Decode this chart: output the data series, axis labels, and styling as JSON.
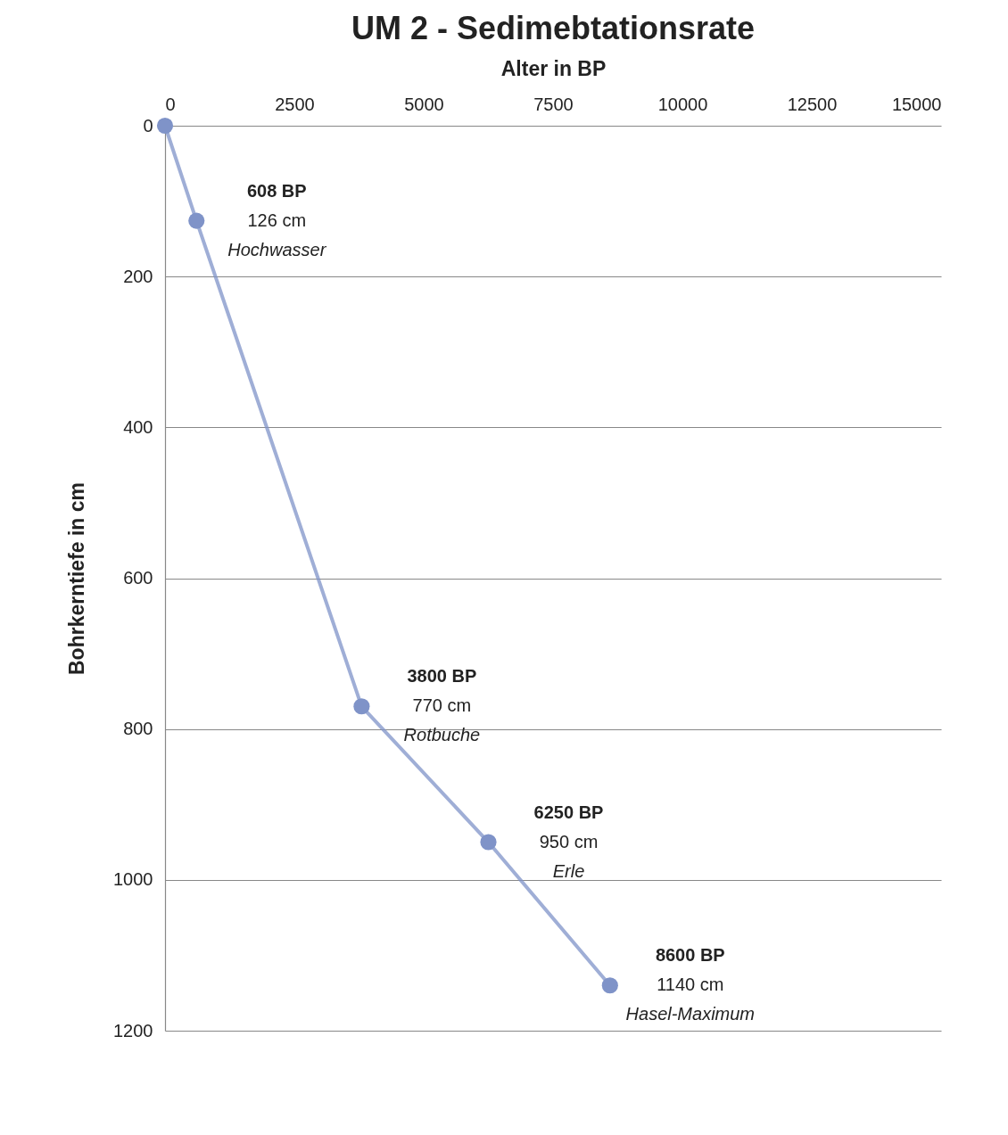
{
  "chart_data": {
    "type": "line",
    "title": "UM 2 - Sedimebtationsrate",
    "xlabel": "Alter in BP",
    "ylabel": "Bohrkerntiefe in cm",
    "x": [
      0,
      608,
      3800,
      6250,
      8600
    ],
    "series": [
      {
        "color": "#7f93c8",
        "values": [
          0,
          126,
          770,
          950,
          1140
        ]
      }
    ],
    "xlim": [
      0,
      15000
    ],
    "xticks": [
      0,
      2500,
      5000,
      7500,
      10000,
      12500,
      15000
    ],
    "ylim": [
      1200,
      0
    ],
    "yticks": [
      0,
      200,
      400,
      600,
      800,
      1000,
      1200
    ],
    "grid": "y",
    "marker": "circle",
    "line_style": "solid",
    "annotations": [
      "608 BP",
      "126 cm",
      "Hochwasser",
      "3800 BP",
      "770 cm",
      "Rotbuche",
      "6250 BP",
      "950 cm",
      "Erle",
      "8600 BP",
      "1140 cm",
      "Hasel-Maximum"
    ]
  }
}
